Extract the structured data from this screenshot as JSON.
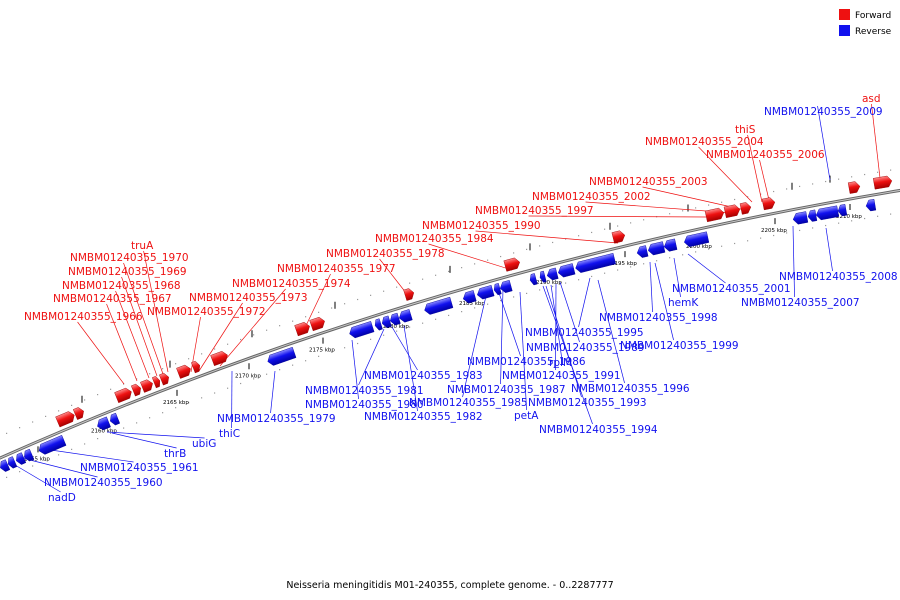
{
  "caption": "Neisseria meningitidis M01-240355, complete genome. - 0..2287777",
  "colors": {
    "forward": "#ee1111",
    "reverse": "#1111ee",
    "backbone": "#777777"
  },
  "legend": [
    {
      "label": "Forward",
      "color": "#ee1111"
    },
    {
      "label": "Reverse",
      "color": "#1111ee"
    }
  ],
  "ticks": [
    "2155 kbp",
    "2160 kbp",
    "2165 kbp",
    "2170 kbp",
    "2175 kbp",
    "2180 kbp",
    "2185 kbp",
    "2190 kbp",
    "2195 kbp",
    "2200 kbp",
    "2205 kbp",
    "2210 kbp"
  ],
  "forward_labels": [
    "truA",
    "NMBM01240355_1970",
    "NMBM01240355_1969",
    "NMBM01240355_1968",
    "NMBM01240355_1967",
    "NMBM01240355_1966",
    "NMBM01240355_1973",
    "NMBM01240355_1972",
    "NMBM01240355_1974",
    "NMBM01240355_1977",
    "NMBM01240355_1978",
    "NMBM01240355_1984",
    "NMBM01240355_1990",
    "NMBM01240355_1997",
    "NMBM01240355_2002",
    "NMBM01240355_2003",
    "NMBM01240355_2004",
    "thiS",
    "NMBM01240355_2006",
    "asd"
  ],
  "reverse_labels": [
    "NMBM01240355_2009",
    "NMBM01240355_2008",
    "NMBM01240355_2007",
    "NMBM01240355_2001",
    "hemK",
    "NMBM01240355_1998",
    "NMBM01240355_1999",
    "NMBM01240355_1995",
    "NMBM01240355_1996",
    "NMBM01240355_1989",
    "rplM",
    "NMBM01240355_1991",
    "NMBM01240355_1993",
    "NMBM01240355_1994",
    "NMBM01240355_1986",
    "NMBM01240355_1987",
    "NMBM01240355_1985",
    "petA",
    "NMBM01240355_1983",
    "NMBM01240355_1982",
    "NMBM01240355_1981",
    "NMBM01240355_1980",
    "NMBM01240355_1979",
    "thiC",
    "ubiG",
    "thrB",
    "NMBM01240355_1961",
    "NMBM01240355_1960",
    "nadD"
  ]
}
